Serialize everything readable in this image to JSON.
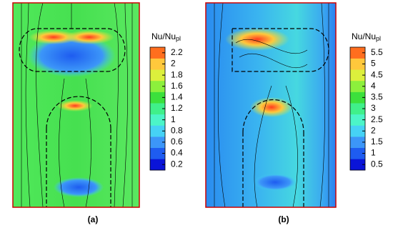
{
  "panels": [
    {
      "label": "(a)",
      "colorbar": {
        "title": "Nu/Nu",
        "title_sub": "pl",
        "lim": [
          0.1,
          2.3
        ],
        "ticks": [
          0.2,
          0.4,
          0.6,
          0.8,
          1,
          1.2,
          1.4,
          1.6,
          1.8,
          2,
          2.2
        ],
        "colors": [
          "#0a14d8",
          "#1e5cf0",
          "#3c96f8",
          "#46d2f5",
          "#4cf5c8",
          "#40f08a",
          "#3ce03c",
          "#8cf03c",
          "#dcf03c",
          "#ffc83c",
          "#ff6e1e"
        ]
      }
    },
    {
      "label": "(b)",
      "colorbar": {
        "title": "Nu/Nu",
        "title_sub": "pl",
        "lim": [
          0.25,
          5.75
        ],
        "ticks": [
          0.5,
          1,
          1.5,
          2,
          2.5,
          3,
          3.5,
          4,
          4.5,
          5,
          5.5
        ],
        "colors": [
          "#0a14d8",
          "#1e5cf0",
          "#3c96f8",
          "#46d2f5",
          "#4cf5c8",
          "#40f08a",
          "#3ce03c",
          "#8cf03c",
          "#dcf03c",
          "#ffc83c",
          "#ff6e1e"
        ]
      }
    }
  ]
}
